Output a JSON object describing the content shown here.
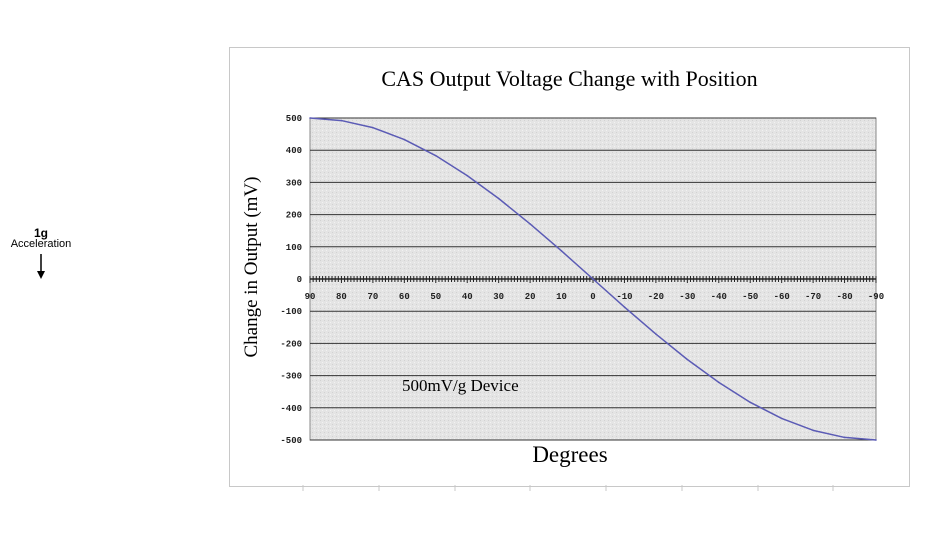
{
  "side_note": {
    "line1": "1g",
    "line2": "Acceleration",
    "arrow_icon": "down-arrow-icon"
  },
  "chart_data": {
    "type": "line",
    "title": "CAS Output Voltage Change with Position",
    "xlabel": "Degrees",
    "ylabel": "Change in Output (mV)",
    "annotation": "500mV/g Device",
    "xlim": [
      90,
      -90
    ],
    "ylim": [
      -500,
      500
    ],
    "x_ticks": [
      90,
      80,
      70,
      60,
      50,
      40,
      30,
      20,
      10,
      0,
      -10,
      -20,
      -30,
      -40,
      -50,
      -60,
      -70,
      -80,
      -90
    ],
    "x_tick_labels": [
      "90",
      "80",
      "70",
      "60",
      "50",
      "40",
      "30",
      "20",
      "10",
      "0",
      "-10",
      "-20",
      "-30",
      "-40",
      "-50",
      "-60",
      "-70",
      "-80",
      "-90"
    ],
    "y_ticks": [
      500,
      400,
      300,
      200,
      100,
      0,
      -100,
      -200,
      -300,
      -400,
      -500
    ],
    "y_tick_labels": [
      "500",
      "400",
      "300",
      "200",
      "100",
      "0",
      "-100",
      "-200",
      "-300",
      "-400",
      "-500"
    ],
    "grid": true,
    "series": [
      {
        "color": "#5b5bb5",
        "x": [
          90,
          80,
          70,
          60,
          50,
          40,
          30,
          20,
          10,
          0,
          -10,
          -20,
          -30,
          -40,
          -50,
          -60,
          -70,
          -80,
          -90
        ],
        "y": [
          500,
          492,
          470,
          433,
          383,
          321,
          250,
          171,
          87,
          0,
          -87,
          -171,
          -250,
          -321,
          -383,
          -433,
          -470,
          -492,
          -500
        ]
      }
    ]
  }
}
